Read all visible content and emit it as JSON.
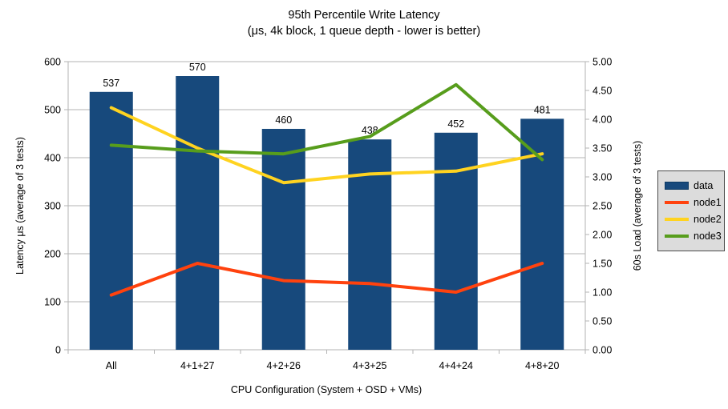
{
  "title": {
    "line1": "95th Percentile Write Latency",
    "line2": "(μs, 4k block, 1 queue depth - lower is better)"
  },
  "colors": {
    "bar": "#17497c",
    "bar_border": "#0d3a63",
    "node1": "#ff420e",
    "node2": "#ffd320",
    "node3": "#579d1c",
    "grid": "#b3b3b3",
    "text": "#000000",
    "legend_bg": "#dcdcdc",
    "legend_border": "#4c4c4c"
  },
  "chart_data": {
    "type": "bar",
    "subtype": "bars with overlaid lines on secondary axis",
    "title": "95th Percentile Write Latency (μs, 4k block, 1 queue depth - lower is better)",
    "categories": [
      "All",
      "4+1+27",
      "4+2+26",
      "4+3+25",
      "4+4+24",
      "4+8+20"
    ],
    "bar_series": {
      "name": "data",
      "axis": "left",
      "color": "#17497c",
      "values": [
        537,
        570,
        460,
        438,
        452,
        481
      ],
      "value_labels": [
        "537",
        "570",
        "460",
        "438",
        "452",
        "481"
      ]
    },
    "line_series": [
      {
        "name": "node1",
        "axis": "right",
        "color": "#ff420e",
        "values": [
          0.95,
          1.5,
          1.2,
          1.15,
          1.0,
          1.5
        ]
      },
      {
        "name": "node2",
        "axis": "right",
        "color": "#ffd320",
        "values": [
          4.2,
          3.5,
          2.9,
          3.05,
          3.1,
          3.4
        ]
      },
      {
        "name": "node3",
        "axis": "right",
        "color": "#579d1c",
        "values": [
          3.55,
          3.45,
          3.4,
          3.7,
          4.6,
          3.3
        ]
      }
    ],
    "left_axis": {
      "label": "Latency μs (average of 3 tests)",
      "min": 0,
      "max": 600,
      "step": 100,
      "ticks": [
        "0",
        "100",
        "200",
        "300",
        "400",
        "500",
        "600"
      ]
    },
    "right_axis": {
      "label": "60s Load (average of 3 tests)",
      "min": 0,
      "max": 5,
      "step": 0.5,
      "ticks": [
        "0.00",
        "0.50",
        "1.00",
        "1.50",
        "2.00",
        "2.50",
        "3.00",
        "3.50",
        "4.00",
        "4.50",
        "5.00"
      ]
    },
    "x_axis": {
      "label": "CPU Configuration (System + OSD + VMs)"
    },
    "grid": "horizontal only",
    "legend": {
      "position": "right",
      "entries": [
        "data",
        "node1",
        "node2",
        "node3"
      ]
    }
  }
}
